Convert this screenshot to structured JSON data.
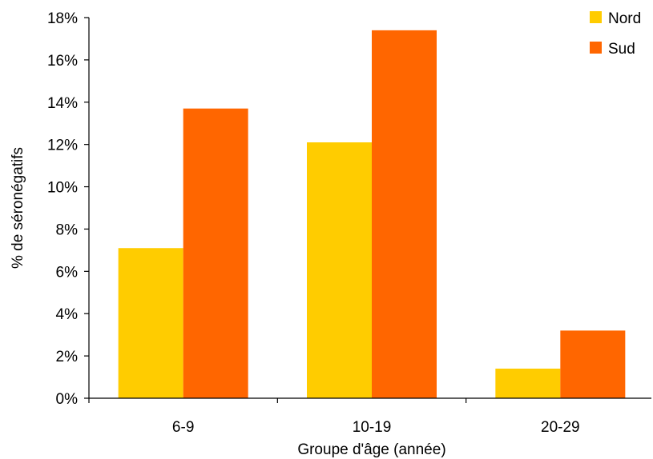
{
  "chart_data": {
    "type": "bar",
    "categories": [
      "6-9",
      "10-19",
      "20-29"
    ],
    "series": [
      {
        "name": "Nord",
        "values": [
          7.1,
          12.1,
          1.4
        ],
        "color": "#FFCC00"
      },
      {
        "name": "Sud",
        "values": [
          13.7,
          17.4,
          3.2
        ],
        "color": "#FF6600"
      }
    ],
    "xlabel": "Groupe d'âge (année)",
    "ylabel": "% de séronégatifs",
    "ylim": [
      0,
      18
    ],
    "yticks": [
      "0%",
      "2%",
      "4%",
      "6%",
      "8%",
      "10%",
      "12%",
      "14%",
      "16%",
      "18%"
    ],
    "grid": false,
    "legend_position": "top-right"
  }
}
